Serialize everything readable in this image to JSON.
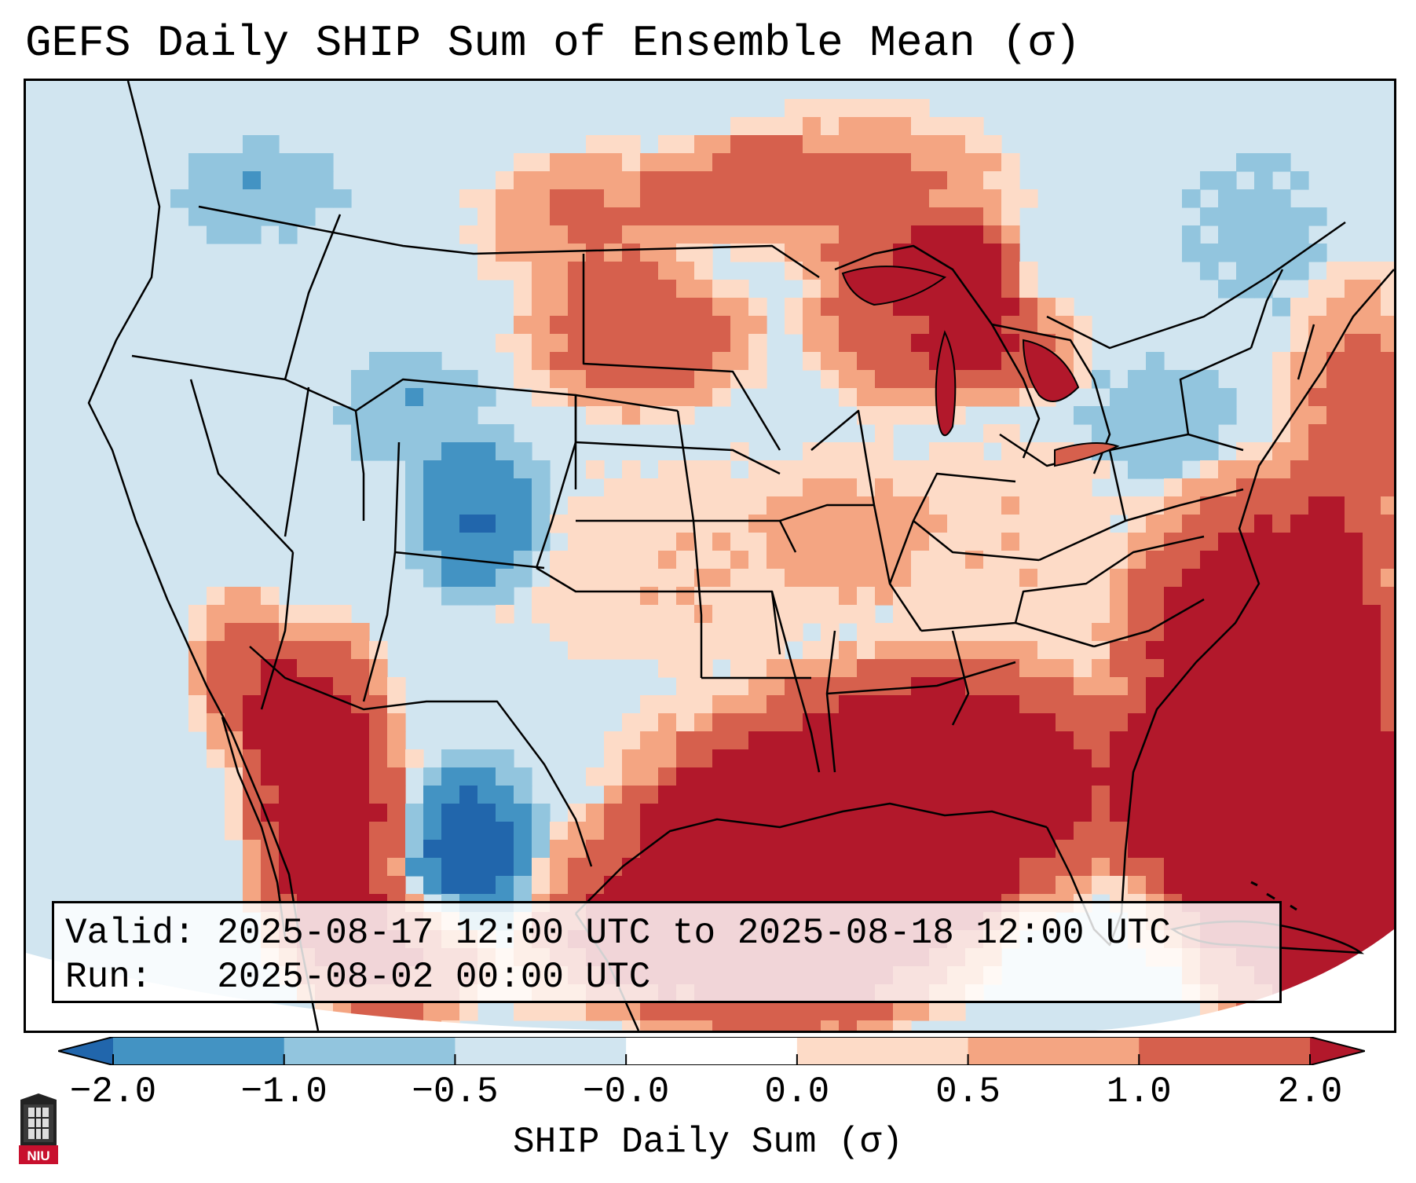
{
  "title": "GEFS Daily SHIP Sum of Ensemble Mean (σ)",
  "info": {
    "valid_label": "Valid:",
    "valid_value": "2025-08-17 12:00 UTC to 2025-08-18 12:00 UTC",
    "run_label": "Run:",
    "run_value": "2025-08-02 00:00 UTC"
  },
  "colorbar": {
    "label": "SHIP Daily Sum (σ)",
    "ticks": [
      "−2.0",
      "−1.0",
      "−0.5",
      "−0.0",
      "0.0",
      "0.5",
      "1.0",
      "2.0"
    ],
    "colors": [
      "#2166ac",
      "#4393c3",
      "#92c5de",
      "#d1e5f0",
      "#ffffff",
      "#fddbc7",
      "#f4a582",
      "#d6604d",
      "#b2182b"
    ],
    "extend": "both"
  },
  "logo_text": "NIU"
}
